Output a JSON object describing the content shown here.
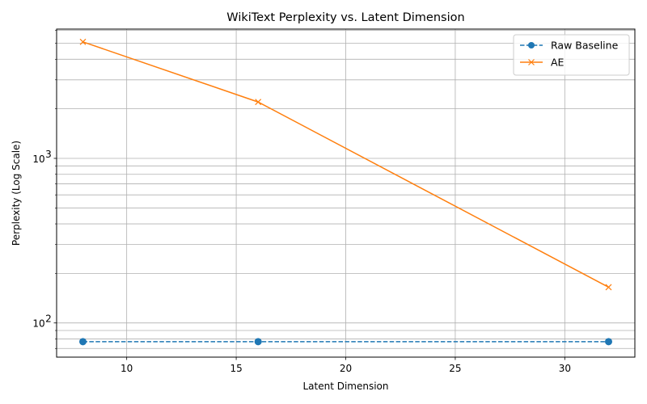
{
  "chart_data": {
    "type": "line",
    "title": "WikiText Perplexity vs. Latent Dimension",
    "xlabel": "Latent Dimension",
    "ylabel": "Perplexity (Log Scale)",
    "yscale": "log",
    "xlim": [
      6.8,
      33.2
    ],
    "ylim": [
      62,
      6100
    ],
    "x_ticks": [
      10,
      15,
      20,
      25,
      30
    ],
    "y_major_ticks": [
      100,
      1000
    ],
    "y_major_tick_labels": [
      "10",
      "10"
    ],
    "y_major_tick_exponents": [
      "2",
      "3"
    ],
    "grid": true,
    "legend_position": "top-right",
    "series": [
      {
        "name": "Raw Baseline",
        "x": [
          8,
          16,
          32
        ],
        "y": [
          77,
          77,
          77
        ],
        "color": "#1f77b4",
        "line_style": "dashed",
        "marker": "circle"
      },
      {
        "name": "AE",
        "x": [
          8,
          16,
          32
        ],
        "y": [
          5100,
          2200,
          165
        ],
        "color": "#ff7f0e",
        "line_style": "solid",
        "marker": "x"
      }
    ]
  }
}
